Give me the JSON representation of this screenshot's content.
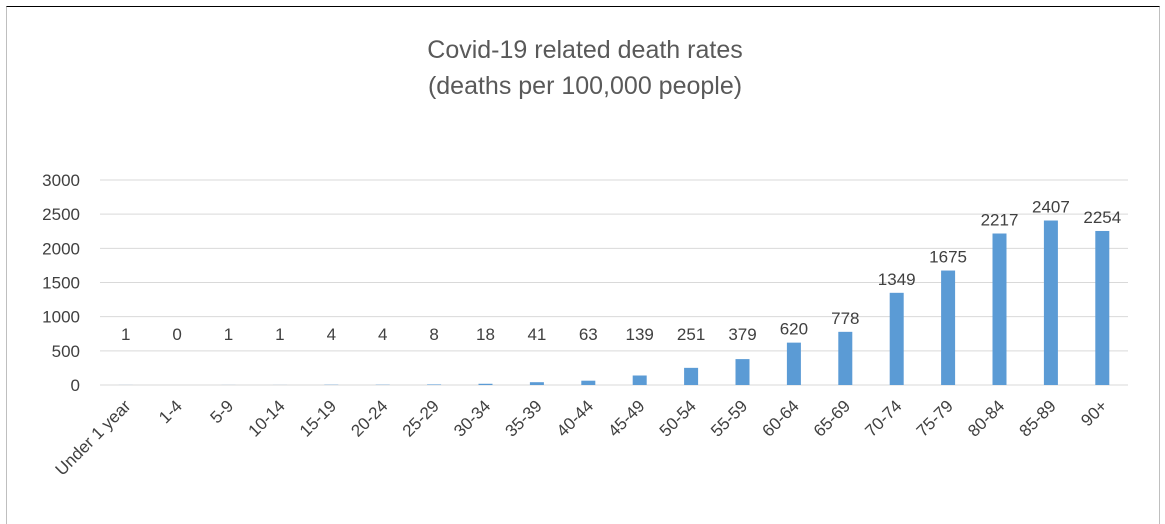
{
  "chart_data": {
    "type": "bar",
    "title": "Covid-19 related death rates",
    "subtitle": "(deaths per 100,000 people)",
    "xlabel": "",
    "ylabel": "",
    "categories": [
      "Under 1 year",
      "1-4",
      "5-9",
      "10-14",
      "15-19",
      "20-24",
      "25-29",
      "30-34",
      "35-39",
      "40-44",
      "45-49",
      "50-54",
      "55-59",
      "60-64",
      "65-69",
      "70-74",
      "75-79",
      "80-84",
      "85-89",
      "90+"
    ],
    "values": [
      1,
      0,
      1,
      1,
      4,
      4,
      8,
      18,
      41,
      63,
      139,
      251,
      379,
      620,
      778,
      1349,
      1675,
      2217,
      2407,
      2254
    ],
    "ylim": [
      0,
      3000
    ],
    "yticks": [
      0,
      500,
      1000,
      1500,
      2000,
      2500,
      3000
    ],
    "grid": true,
    "legend": "none",
    "colors": {
      "bar": "#5b9bd5",
      "grid": "#d9d9d9",
      "text": "#404040",
      "title": "#595959"
    }
  }
}
